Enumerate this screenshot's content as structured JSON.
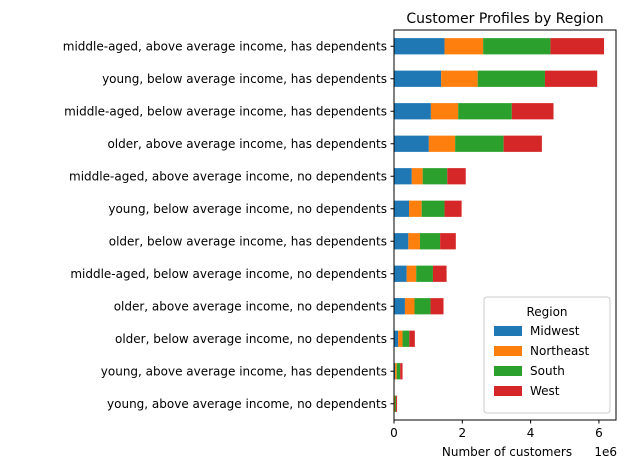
{
  "chart_data": {
    "type": "bar",
    "orientation": "horizontal",
    "stacked": true,
    "title": "Customer Profiles by Region",
    "xlabel": "Number of customers",
    "ylabel": "",
    "x_offset_text": "1e6",
    "xlim": [
      0,
      6.5
    ],
    "xticks": [
      0,
      2,
      4,
      6
    ],
    "grid": false,
    "legend": {
      "title": "Region",
      "placement": "lower-right"
    },
    "categories": [
      "middle-aged, above average income, has dependents",
      "young, below average income, has dependents",
      "middle-aged, below average income, has dependents",
      "older, above average income, has dependents",
      "middle-aged, above average income, no dependents",
      "young, below average income, no dependents",
      "older, below average income, has dependents",
      "middle-aged, below average income, no dependents",
      "older, above average income, no dependents",
      "older, below average income, no dependents",
      "young, above average income, has dependents",
      "young, above average income, no dependents"
    ],
    "series": [
      {
        "name": "Midwest",
        "color": "#1f77b4",
        "values": [
          1.48,
          1.38,
          1.08,
          1.02,
          0.52,
          0.44,
          0.42,
          0.37,
          0.32,
          0.12,
          0.03,
          0.01
        ]
      },
      {
        "name": "Northeast",
        "color": "#ff7f0e",
        "values": [
          1.13,
          1.07,
          0.8,
          0.77,
          0.32,
          0.37,
          0.34,
          0.28,
          0.28,
          0.13,
          0.05,
          0.02
        ]
      },
      {
        "name": "South",
        "color": "#2ca02c",
        "values": [
          1.97,
          1.97,
          1.57,
          1.42,
          0.72,
          0.67,
          0.59,
          0.49,
          0.47,
          0.2,
          0.1,
          0.03
        ]
      },
      {
        "name": "West",
        "color": "#d62728",
        "values": [
          1.57,
          1.53,
          1.22,
          1.12,
          0.54,
          0.5,
          0.46,
          0.4,
          0.38,
          0.16,
          0.07,
          0.03
        ]
      }
    ]
  }
}
